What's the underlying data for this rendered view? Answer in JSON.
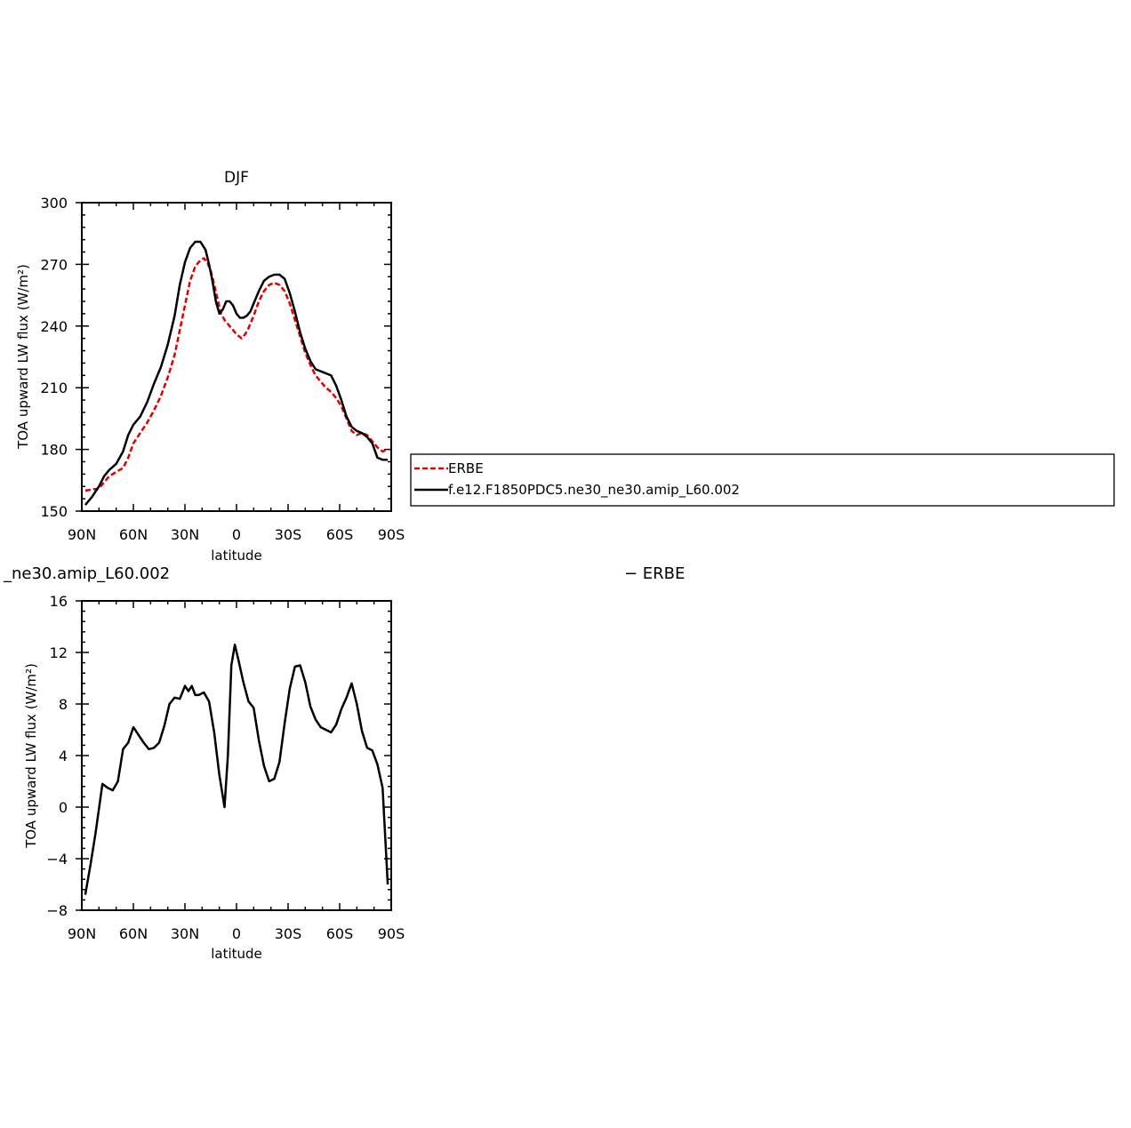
{
  "chart_data": [
    {
      "type": "line",
      "title": "DJF",
      "xlabel": "latitude",
      "ylabel": "TOA upward LW flux (W/m²)",
      "xlim": [
        -90,
        90
      ],
      "ylim": [
        150,
        300
      ],
      "x_ticks": [
        -90,
        -60,
        -30,
        0,
        30,
        60,
        90
      ],
      "x_tick_labels": [
        "90N",
        "60N",
        "30N",
        "0",
        "30S",
        "60S",
        "90S"
      ],
      "y_ticks": [
        150,
        180,
        210,
        240,
        270,
        300
      ],
      "y_tick_labels": [
        "150",
        "180",
        "210",
        "240",
        "270",
        "300"
      ],
      "legend_position": "right",
      "series": [
        {
          "name": "ERBE",
          "color": "#e00000",
          "style": "dashed",
          "x": [
            -88,
            -84,
            -80,
            -77,
            -74,
            -70,
            -66,
            -63,
            -60,
            -56,
            -52,
            -48,
            -44,
            -40,
            -36,
            -33,
            -30,
            -27,
            -24,
            -21,
            -19,
            -17,
            -15,
            -13,
            -11,
            -9,
            -7,
            -5,
            -3,
            0,
            3,
            5,
            7,
            10,
            13,
            16,
            19,
            22,
            25,
            28,
            31,
            34,
            37,
            40,
            43,
            46,
            49,
            52,
            55,
            58,
            61,
            64,
            67,
            70,
            73,
            76,
            79,
            82,
            85,
            88
          ],
          "values": [
            160,
            160.5,
            161,
            164,
            167,
            169,
            171,
            176,
            183,
            188,
            193,
            199,
            206,
            215,
            226,
            238,
            250,
            262,
            269,
            272,
            273,
            271,
            267,
            260,
            253,
            246,
            243,
            241,
            239,
            236,
            234,
            236,
            239,
            245,
            252,
            257,
            260,
            261,
            260,
            257,
            251,
            243,
            235,
            227,
            221,
            216,
            213,
            210,
            208,
            205,
            201,
            195,
            189,
            187,
            188,
            187,
            184,
            181,
            179,
            180
          ]
        },
        {
          "name": "f.e12.F1850PDC5.ne30_ne30.amip_L60.002",
          "color": "#000000",
          "style": "solid",
          "x": [
            -88,
            -84,
            -80,
            -77,
            -74,
            -70,
            -66,
            -63,
            -60,
            -56,
            -52,
            -48,
            -44,
            -40,
            -36,
            -33,
            -30,
            -27,
            -24,
            -21,
            -18,
            -16,
            -14,
            -12,
            -10,
            -8,
            -6,
            -4,
            -2,
            0,
            2,
            4,
            6,
            8,
            10,
            13,
            16,
            19,
            22,
            25,
            28,
            31,
            34,
            37,
            40,
            43,
            46,
            49,
            52,
            55,
            58,
            61,
            64,
            67,
            70,
            73,
            76,
            79,
            82,
            85,
            88
          ],
          "values": [
            153,
            157,
            162,
            167,
            170,
            173,
            179,
            187,
            192,
            196,
            203,
            212,
            220,
            231,
            245,
            260,
            271,
            278,
            281,
            281,
            277,
            270,
            262,
            252,
            246,
            248,
            252,
            252,
            250,
            246,
            244,
            244,
            245,
            247,
            251,
            257,
            262,
            264,
            265,
            265,
            263,
            256,
            247,
            237,
            229,
            223,
            219,
            218,
            217,
            216,
            211,
            204,
            196,
            191,
            189,
            188,
            186,
            183,
            176,
            175,
            175
          ]
        }
      ]
    },
    {
      "type": "line",
      "title": "_ne30.amip_L60.002",
      "title_right": "− ERBE",
      "xlabel": "latitude",
      "ylabel": "TOA upward LW flux (W/m²)",
      "xlim": [
        -90,
        90
      ],
      "ylim": [
        -8,
        16
      ],
      "x_ticks": [
        -90,
        -60,
        -30,
        0,
        30,
        60,
        90
      ],
      "x_tick_labels": [
        "90N",
        "60N",
        "30N",
        "0",
        "30S",
        "60S",
        "90S"
      ],
      "y_ticks": [
        -8,
        -4,
        0,
        4,
        8,
        12,
        16
      ],
      "y_tick_labels": [
        "−8",
        "−4",
        "0",
        "4",
        "8",
        "12",
        "16"
      ],
      "series": [
        {
          "name": "",
          "color": "#000000",
          "style": "solid",
          "x": [
            -88,
            -85,
            -82,
            -78,
            -75,
            -72,
            -69,
            -66,
            -63,
            -60,
            -57,
            -54,
            -51,
            -48,
            -45,
            -42,
            -39,
            -36,
            -33,
            -30,
            -28,
            -26,
            -24,
            -22,
            -19,
            -16,
            -13,
            -10,
            -7,
            -5,
            -3,
            -1,
            1,
            4,
            7,
            10,
            13,
            16,
            19,
            22,
            25,
            28,
            31,
            34,
            37,
            40,
            43,
            46,
            49,
            52,
            55,
            58,
            61,
            64,
            67,
            70,
            73,
            76,
            79,
            82,
            85,
            88
          ],
          "values": [
            -6.8,
            -4.5,
            -2,
            1.8,
            1.5,
            1.3,
            2,
            4.5,
            5,
            6.2,
            5.6,
            5,
            4.5,
            4.6,
            5,
            6.3,
            8,
            8.5,
            8.4,
            9.4,
            9,
            9.4,
            8.7,
            8.7,
            8.9,
            8.2,
            5.8,
            2.5,
            0,
            4,
            11,
            12.6,
            11.5,
            9.7,
            8.2,
            7.7,
            5.2,
            3.2,
            2,
            2.2,
            3.5,
            6.5,
            9.2,
            10.9,
            11,
            9.7,
            7.8,
            6.8,
            6.2,
            6,
            5.8,
            6.4,
            7.6,
            8.5,
            9.6,
            8,
            5.9,
            4.6,
            4.4,
            3.3,
            1.5,
            -6
          ]
        }
      ]
    }
  ]
}
